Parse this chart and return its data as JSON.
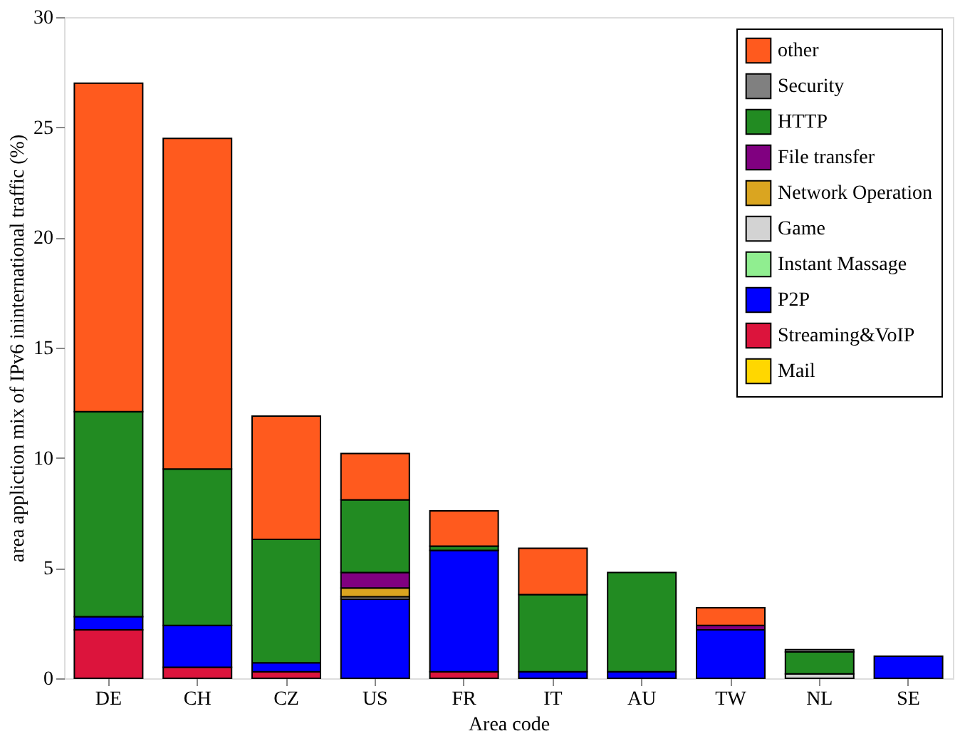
{
  "chart_data": {
    "type": "bar",
    "stacked": true,
    "xlabel": "Area code",
    "ylabel": "area appliction mix  of  IPv6 ininternational traffic (%)",
    "categories": [
      "DE",
      "CH",
      "CZ",
      "US",
      "FR",
      "IT",
      "AU",
      "TW",
      "NL",
      "SE"
    ],
    "series": [
      {
        "name": "Mail",
        "color": "#ffd700",
        "values": [
          null,
          null,
          null,
          null,
          null,
          null,
          null,
          null,
          null,
          null
        ]
      },
      {
        "name": "Streaming&VoIP",
        "color": "#dc143c",
        "values": [
          2.2,
          0.5,
          0.3,
          null,
          0.3,
          null,
          null,
          null,
          null,
          null
        ]
      },
      {
        "name": "P2P",
        "color": "#0000ff",
        "values": [
          0.6,
          1.9,
          0.4,
          3.6,
          5.5,
          0.3,
          0.3,
          2.2,
          null,
          1.0
        ]
      },
      {
        "name": "Instant Massage",
        "color": "#90ee90",
        "values": [
          null,
          null,
          null,
          null,
          null,
          null,
          null,
          null,
          null,
          null
        ]
      },
      {
        "name": "Game",
        "color": "#d3d3d3",
        "values": [
          null,
          null,
          null,
          0.1,
          null,
          null,
          null,
          null,
          0.2,
          null
        ]
      },
      {
        "name": "Network Operation",
        "color": "#daa520",
        "values": [
          null,
          null,
          null,
          0.4,
          null,
          null,
          null,
          null,
          null,
          null
        ]
      },
      {
        "name": "File transfer",
        "color": "#800080",
        "values": [
          null,
          null,
          null,
          0.7,
          null,
          null,
          null,
          0.2,
          null,
          null
        ]
      },
      {
        "name": "HTTP",
        "color": "#228b22",
        "values": [
          9.3,
          7.1,
          5.6,
          3.3,
          0.2,
          3.5,
          4.5,
          null,
          1.0,
          null
        ]
      },
      {
        "name": "Security",
        "color": "#808080",
        "values": [
          null,
          null,
          null,
          null,
          null,
          null,
          null,
          null,
          0.1,
          null
        ]
      },
      {
        "name": "other",
        "color": "#ff5a1e",
        "values": [
          14.9,
          15.0,
          5.6,
          2.1,
          1.6,
          2.1,
          null,
          0.8,
          null,
          null
        ]
      }
    ],
    "ylim": [
      0,
      30
    ],
    "yticks": [
      0,
      5,
      10,
      15,
      20,
      25,
      30
    ],
    "grid": false,
    "legend": "top right"
  }
}
